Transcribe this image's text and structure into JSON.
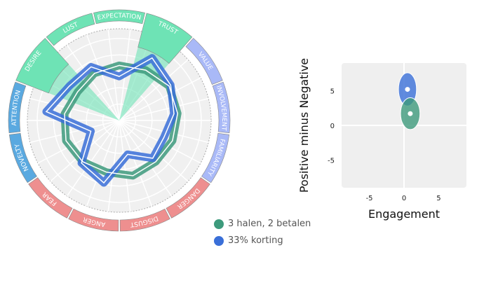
{
  "chart_data": [
    {
      "type": "radar",
      "axes": [
        "EXPECTATION",
        "TRUST",
        "VALUE",
        "INVOLVEMENT",
        "FAMILIARITY",
        "DANGER",
        "DISGUST",
        "ANGER",
        "FEAR",
        "NOVELTY",
        "ATTENTION",
        "DESIRE",
        "LUST"
      ],
      "axis_colors": [
        "#6ee3b5",
        "#6ee3b5",
        "#a9b9f7",
        "#a9b9f7",
        "#a9b9f7",
        "#ee8f8f",
        "#ee8f8f",
        "#ee8f8f",
        "#ee8f8f",
        "#5aa9e0",
        "#5aa9e0",
        "#6ee3b5",
        "#6ee3b5"
      ],
      "highlighted_axes": [
        "TRUST",
        "DESIRE"
      ],
      "range": [
        0,
        1
      ],
      "series": [
        {
          "name": "3 halen, 2 betalen",
          "color": "#3d9a7c",
          "values": [
            0.6,
            0.62,
            0.66,
            0.64,
            0.62,
            0.6,
            0.62,
            0.58,
            0.6,
            0.62,
            0.6,
            0.55,
            0.58
          ]
        },
        {
          "name": "33% korting",
          "color": "#3a6fd8",
          "values": [
            0.48,
            0.77,
            0.68,
            0.6,
            0.52,
            0.55,
            0.38,
            0.7,
            0.62,
            0.33,
            0.8,
            0.66,
            0.66
          ]
        }
      ]
    },
    {
      "type": "scatter",
      "xlabel": "Engagement",
      "ylabel": "Positive minus Negative",
      "xlim": [
        -9,
        9
      ],
      "ylim": [
        -9,
        9
      ],
      "xticks": [
        -5,
        0,
        5
      ],
      "yticks": [
        5,
        0,
        -5
      ],
      "points": [
        {
          "series": "3 halen, 2 betalen",
          "color": "#3d9a7c",
          "x": 0.9,
          "y": 1.7,
          "sx": 1.4,
          "sy": 2.3
        },
        {
          "series": "33% korting",
          "color": "#3a6fd8",
          "x": 0.5,
          "y": 5.2,
          "sx": 1.3,
          "sy": 2.4
        }
      ]
    }
  ],
  "legend": [
    {
      "label": "3 halen, 2 betalen",
      "color": "#3d9a7c"
    },
    {
      "label": "33% korting",
      "color": "#3a6fd8"
    }
  ]
}
